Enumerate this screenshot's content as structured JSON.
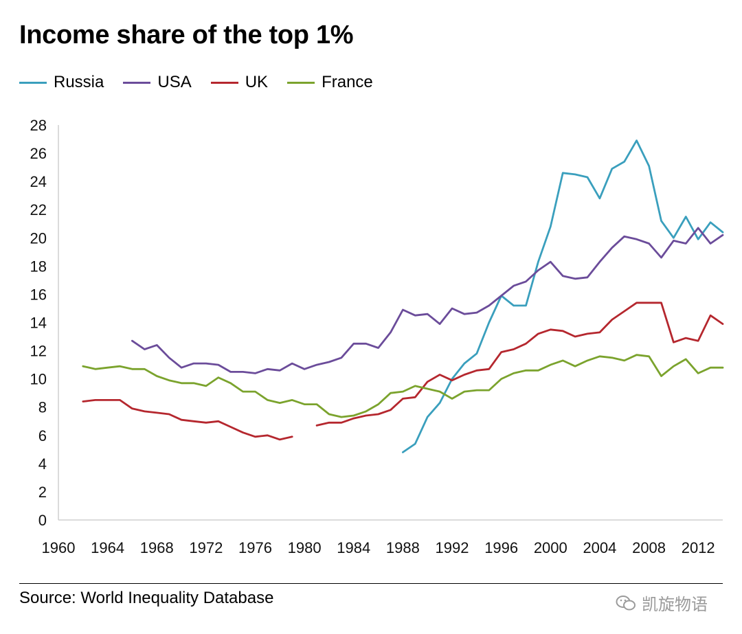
{
  "title": "Income share of the top 1%",
  "source": "Source: World Inequality Database",
  "watermark": "凯旋物语",
  "chart_data": {
    "type": "line",
    "title": "Income share of the top 1%",
    "legend_position": "top-left",
    "grid": false,
    "xlim": [
      1960,
      2014
    ],
    "ylim": [
      0,
      28
    ],
    "x_ticks": [
      1960,
      1964,
      1968,
      1972,
      1976,
      1980,
      1984,
      1988,
      1992,
      1996,
      2000,
      2004,
      2008,
      2012
    ],
    "x_tick_labels": [
      "1960",
      "1964",
      "1968",
      "1972",
      "1976",
      "1980",
      "1984",
      "1988",
      "1992",
      "1996",
      "2000",
      "2004",
      "2008",
      "2012"
    ],
    "y_ticks": [
      0,
      2,
      4,
      6,
      8,
      10,
      12,
      14,
      16,
      18,
      20,
      22,
      24,
      26,
      28
    ],
    "y_tick_labels": [
      "0",
      "2",
      "4",
      "6",
      "8",
      "10",
      "12",
      "14",
      "16",
      "18",
      "20",
      "22",
      "24",
      "26",
      "28"
    ],
    "series": [
      {
        "name": "Russia",
        "color": "#3a9fbd",
        "points": [
          [
            1988,
            4.8
          ],
          [
            1989,
            5.4
          ],
          [
            1990,
            7.3
          ],
          [
            1991,
            8.3
          ],
          [
            1992,
            10.0
          ],
          [
            1993,
            11.1
          ],
          [
            1994,
            11.8
          ],
          [
            1995,
            14.0
          ],
          [
            1996,
            15.9
          ],
          [
            1997,
            15.2
          ],
          [
            1998,
            15.2
          ],
          [
            1999,
            18.3
          ],
          [
            2000,
            20.8
          ],
          [
            2001,
            24.6
          ],
          [
            2002,
            24.5
          ],
          [
            2003,
            24.3
          ],
          [
            2004,
            22.8
          ],
          [
            2005,
            24.9
          ],
          [
            2006,
            25.4
          ],
          [
            2007,
            26.9
          ],
          [
            2008,
            25.1
          ],
          [
            2009,
            21.2
          ],
          [
            2010,
            20.0
          ],
          [
            2011,
            21.5
          ],
          [
            2012,
            19.9
          ],
          [
            2013,
            21.1
          ],
          [
            2014,
            20.4
          ]
        ]
      },
      {
        "name": "USA",
        "color": "#6b4c9a",
        "points": [
          [
            1966,
            12.7
          ],
          [
            1967,
            12.1
          ],
          [
            1968,
            12.4
          ],
          [
            1969,
            11.5
          ],
          [
            1970,
            10.8
          ],
          [
            1971,
            11.1
          ],
          [
            1972,
            11.1
          ],
          [
            1973,
            11.0
          ],
          [
            1974,
            10.5
          ],
          [
            1975,
            10.5
          ],
          [
            1976,
            10.4
          ],
          [
            1977,
            10.7
          ],
          [
            1978,
            10.6
          ],
          [
            1979,
            11.1
          ],
          [
            1980,
            10.7
          ],
          [
            1981,
            11.0
          ],
          [
            1982,
            11.2
          ],
          [
            1983,
            11.5
          ],
          [
            1984,
            12.5
          ],
          [
            1985,
            12.5
          ],
          [
            1986,
            12.2
          ],
          [
            1987,
            13.3
          ],
          [
            1988,
            14.9
          ],
          [
            1989,
            14.5
          ],
          [
            1990,
            14.6
          ],
          [
            1991,
            13.9
          ],
          [
            1992,
            15.0
          ],
          [
            1993,
            14.6
          ],
          [
            1994,
            14.7
          ],
          [
            1995,
            15.2
          ],
          [
            1996,
            15.9
          ],
          [
            1997,
            16.6
          ],
          [
            1998,
            16.9
          ],
          [
            1999,
            17.7
          ],
          [
            2000,
            18.3
          ],
          [
            2001,
            17.3
          ],
          [
            2002,
            17.1
          ],
          [
            2003,
            17.2
          ],
          [
            2004,
            18.3
          ],
          [
            2005,
            19.3
          ],
          [
            2006,
            20.1
          ],
          [
            2007,
            19.9
          ],
          [
            2008,
            19.6
          ],
          [
            2009,
            18.6
          ],
          [
            2010,
            19.8
          ],
          [
            2011,
            19.6
          ],
          [
            2012,
            20.7
          ],
          [
            2013,
            19.6
          ],
          [
            2014,
            20.2
          ]
        ]
      },
      {
        "name": "UK",
        "color": "#b5272e",
        "segments": [
          [
            [
              1962,
              8.4
            ],
            [
              1963,
              8.5
            ],
            [
              1964,
              8.5
            ],
            [
              1965,
              8.5
            ],
            [
              1966,
              7.9
            ],
            [
              1967,
              7.7
            ],
            [
              1968,
              7.6
            ],
            [
              1969,
              7.5
            ],
            [
              1970,
              7.1
            ],
            [
              1971,
              7.0
            ],
            [
              1972,
              6.9
            ],
            [
              1973,
              7.0
            ],
            [
              1974,
              6.6
            ],
            [
              1975,
              6.2
            ],
            [
              1976,
              5.9
            ],
            [
              1977,
              6.0
            ],
            [
              1978,
              5.7
            ],
            [
              1979,
              5.9
            ]
          ],
          [
            [
              1981,
              6.7
            ],
            [
              1982,
              6.9
            ],
            [
              1983,
              6.9
            ],
            [
              1984,
              7.2
            ],
            [
              1985,
              7.4
            ],
            [
              1986,
              7.5
            ],
            [
              1987,
              7.8
            ],
            [
              1988,
              8.6
            ],
            [
              1989,
              8.7
            ],
            [
              1990,
              9.8
            ],
            [
              1991,
              10.3
            ],
            [
              1992,
              9.9
            ],
            [
              1993,
              10.3
            ],
            [
              1994,
              10.6
            ],
            [
              1995,
              10.7
            ],
            [
              1996,
              11.9
            ],
            [
              1997,
              12.1
            ],
            [
              1998,
              12.5
            ],
            [
              1999,
              13.2
            ],
            [
              2000,
              13.5
            ],
            [
              2001,
              13.4
            ],
            [
              2002,
              13.0
            ],
            [
              2003,
              13.2
            ],
            [
              2004,
              13.3
            ],
            [
              2005,
              14.2
            ],
            [
              2006,
              14.8
            ],
            [
              2007,
              15.4
            ],
            [
              2008,
              15.4
            ],
            [
              2009,
              15.4
            ],
            [
              2010,
              12.6
            ],
            [
              2011,
              12.9
            ],
            [
              2012,
              12.7
            ],
            [
              2013,
              14.5
            ],
            [
              2014,
              13.9
            ]
          ]
        ]
      },
      {
        "name": "France",
        "color": "#7ba32d",
        "points": [
          [
            1962,
            10.9
          ],
          [
            1963,
            10.7
          ],
          [
            1964,
            10.8
          ],
          [
            1965,
            10.9
          ],
          [
            1966,
            10.7
          ],
          [
            1967,
            10.7
          ],
          [
            1968,
            10.2
          ],
          [
            1969,
            9.9
          ],
          [
            1970,
            9.7
          ],
          [
            1971,
            9.7
          ],
          [
            1972,
            9.5
          ],
          [
            1973,
            10.1
          ],
          [
            1974,
            9.7
          ],
          [
            1975,
            9.1
          ],
          [
            1976,
            9.1
          ],
          [
            1977,
            8.5
          ],
          [
            1978,
            8.3
          ],
          [
            1979,
            8.5
          ],
          [
            1980,
            8.2
          ],
          [
            1981,
            8.2
          ],
          [
            1982,
            7.5
          ],
          [
            1983,
            7.3
          ],
          [
            1984,
            7.4
          ],
          [
            1985,
            7.7
          ],
          [
            1986,
            8.2
          ],
          [
            1987,
            9.0
          ],
          [
            1988,
            9.1
          ],
          [
            1989,
            9.5
          ],
          [
            1990,
            9.3
          ],
          [
            1991,
            9.1
          ],
          [
            1992,
            8.6
          ],
          [
            1993,
            9.1
          ],
          [
            1994,
            9.2
          ],
          [
            1995,
            9.2
          ],
          [
            1996,
            10.0
          ],
          [
            1997,
            10.4
          ],
          [
            1998,
            10.6
          ],
          [
            1999,
            10.6
          ],
          [
            2000,
            11.0
          ],
          [
            2001,
            11.3
          ],
          [
            2002,
            10.9
          ],
          [
            2003,
            11.3
          ],
          [
            2004,
            11.6
          ],
          [
            2005,
            11.5
          ],
          [
            2006,
            11.3
          ],
          [
            2007,
            11.7
          ],
          [
            2008,
            11.6
          ],
          [
            2009,
            10.2
          ],
          [
            2010,
            10.9
          ],
          [
            2011,
            11.4
          ],
          [
            2012,
            10.4
          ],
          [
            2013,
            10.8
          ],
          [
            2014,
            10.8
          ]
        ]
      }
    ]
  }
}
